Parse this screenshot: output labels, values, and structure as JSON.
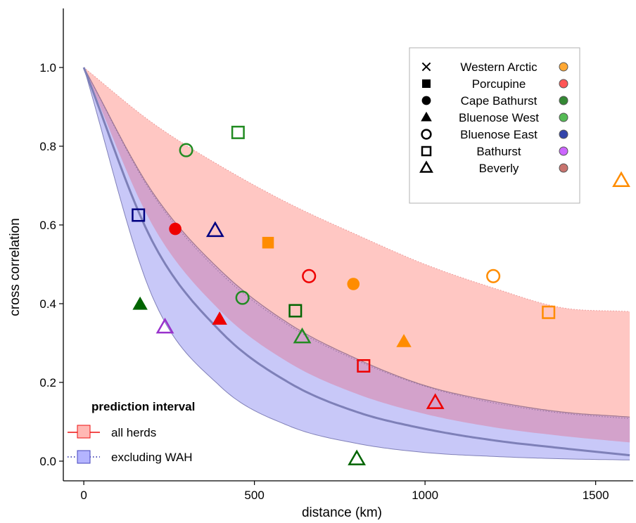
{
  "chart_data": {
    "type": "scatter",
    "title": "",
    "xlabel": "distance (km)",
    "ylabel": "cross correlation",
    "xlim": [
      -60,
      1610
    ],
    "ylim": [
      -0.05,
      1.15
    ],
    "x_ticks": [
      0,
      500,
      1000,
      1500
    ],
    "y_ticks": [
      0.0,
      0.2,
      0.4,
      0.6,
      0.8,
      1.0
    ],
    "x_tick_labels": [
      "0",
      "500",
      "1000",
      "1500"
    ],
    "y_tick_labels": [
      "0.0",
      "0.2",
      "0.4",
      "0.6",
      "0.8",
      "1.0"
    ],
    "grid": false,
    "legend": {
      "placement": "top-right",
      "shapes": [
        {
          "label": "Western Arctic",
          "marker": "x"
        },
        {
          "label": "Porcupine",
          "marker": "square-filled"
        },
        {
          "label": "Cape Bathurst",
          "marker": "circle-filled"
        },
        {
          "label": "Bluenose West",
          "marker": "triangle-filled"
        },
        {
          "label": "Bluenose East",
          "marker": "circle-open"
        },
        {
          "label": "Bathurst",
          "marker": "square-open"
        },
        {
          "label": "Beverly",
          "marker": "triangle-open"
        }
      ],
      "colors": [
        "#ffa833",
        "#ff5555",
        "#338833",
        "#55bb55",
        "#3344aa",
        "#cc66ff",
        "#c8736e"
      ]
    },
    "colors": {
      "Western Arctic": "#ff8c00",
      "Porcupine": "#ee0000",
      "Cape Bathurst": "#006400",
      "Bluenose West": "#228b22",
      "Bluenose East": "#000080",
      "Bathurst": "#9932cc",
      "Beverly": "#a0522d",
      "band_all": "#ffc4c0",
      "band_excl": "#c8c8f8",
      "band_overlap": "#d4a0c8",
      "curve": "#7e80b8"
    },
    "prediction_interval": {
      "title": "prediction interval",
      "entries": [
        {
          "label": "all herds",
          "line": "solid",
          "line_color": "#ee1111",
          "fill": "#ffb8b4"
        },
        {
          "label": "excluding WAH",
          "line": "dotted",
          "line_color": "#2222aa",
          "fill": "#b4b4ff"
        }
      ]
    },
    "bands": {
      "x": [
        0,
        200,
        400,
        600,
        800,
        1000,
        1200,
        1400,
        1600
      ],
      "all_herds": {
        "upper": [
          1.0,
          0.86,
          0.75,
          0.655,
          0.575,
          0.5,
          0.44,
          0.39,
          0.38
        ],
        "lower": [
          1.0,
          0.685,
          0.485,
          0.35,
          0.26,
          0.192,
          0.152,
          0.125,
          0.112
        ]
      },
      "excluding_wah": {
        "upper": [
          1.0,
          0.68,
          0.478,
          0.345,
          0.256,
          0.19,
          0.148,
          0.122,
          0.108
        ],
        "lower": [
          1.0,
          0.42,
          0.19,
          0.09,
          0.045,
          0.022,
          0.012,
          0.006,
          0.003
        ]
      },
      "center_curve": [
        1.0,
        0.56,
        0.33,
        0.2,
        0.125,
        0.082,
        0.053,
        0.033,
        0.015
      ]
    },
    "points": [
      {
        "x": 160,
        "y": 0.625,
        "marker": "square-open",
        "color": "#000080"
      },
      {
        "x": 165,
        "y": 0.398,
        "marker": "triangle-filled",
        "color": "#006400"
      },
      {
        "x": 238,
        "y": 0.34,
        "marker": "triangle-open",
        "color": "#9932cc"
      },
      {
        "x": 268,
        "y": 0.59,
        "marker": "circle-filled",
        "color": "#ee0000"
      },
      {
        "x": 300,
        "y": 0.79,
        "marker": "circle-open",
        "color": "#228b22"
      },
      {
        "x": 385,
        "y": 0.585,
        "marker": "triangle-open",
        "color": "#000080"
      },
      {
        "x": 398,
        "y": 0.36,
        "marker": "triangle-filled",
        "color": "#ee0000"
      },
      {
        "x": 452,
        "y": 0.835,
        "marker": "square-open",
        "color": "#228b22"
      },
      {
        "x": 465,
        "y": 0.415,
        "marker": "circle-open",
        "color": "#228b22"
      },
      {
        "x": 540,
        "y": 0.555,
        "marker": "square-filled",
        "color": "#ff8c00"
      },
      {
        "x": 620,
        "y": 0.382,
        "marker": "square-open",
        "color": "#006400"
      },
      {
        "x": 640,
        "y": 0.315,
        "marker": "triangle-open",
        "color": "#228b22"
      },
      {
        "x": 660,
        "y": 0.47,
        "marker": "circle-open",
        "color": "#ee0000"
      },
      {
        "x": 790,
        "y": 0.45,
        "marker": "circle-filled",
        "color": "#ff8c00"
      },
      {
        "x": 800,
        "y": 0.005,
        "marker": "triangle-open",
        "color": "#006400"
      },
      {
        "x": 820,
        "y": 0.242,
        "marker": "square-open",
        "color": "#ee0000"
      },
      {
        "x": 938,
        "y": 0.303,
        "marker": "triangle-filled",
        "color": "#ff8c00"
      },
      {
        "x": 1030,
        "y": 0.148,
        "marker": "triangle-open",
        "color": "#ee0000"
      },
      {
        "x": 1200,
        "y": 0.47,
        "marker": "circle-open",
        "color": "#ff8c00"
      },
      {
        "x": 1362,
        "y": 0.378,
        "marker": "square-open",
        "color": "#ff8c00"
      },
      {
        "x": 1575,
        "y": 0.712,
        "marker": "triangle-open",
        "color": "#ff8c00"
      }
    ]
  }
}
